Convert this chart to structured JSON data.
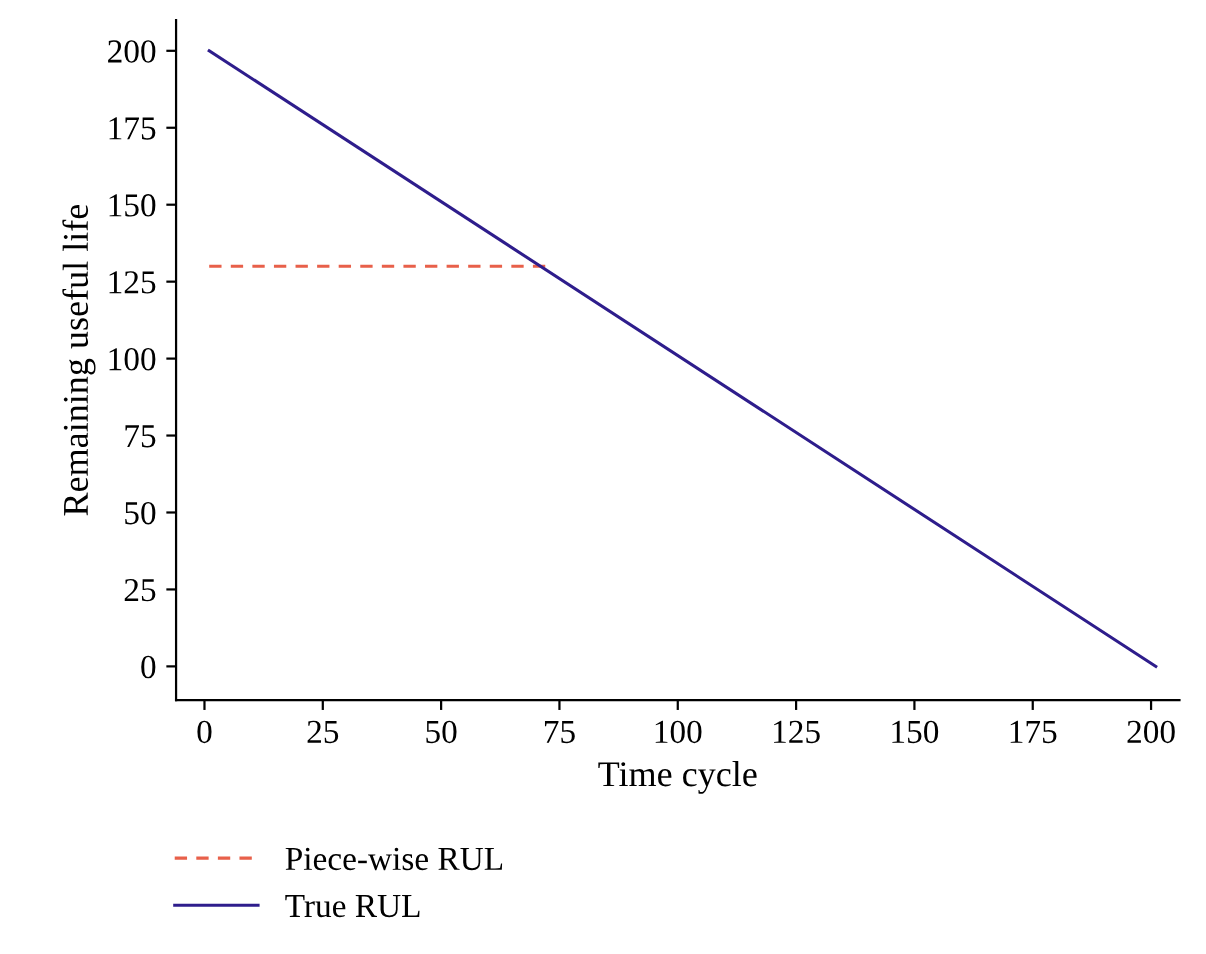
{
  "chart_data": {
    "type": "line",
    "xlabel": "Time cycle",
    "ylabel": "Remaining useful life",
    "series": [
      {
        "name": "Piece-wise RUL",
        "color": "#e8604a",
        "line_style": "dashed",
        "x": [
          1,
          72
        ],
        "values": [
          130,
          130
        ]
      },
      {
        "name": "True RUL",
        "color": "#2e1d8c",
        "line_style": "solid",
        "x": [
          1,
          201
        ],
        "values": [
          200,
          0
        ]
      }
    ],
    "xlim": [
      -6,
      206
    ],
    "xticks": [
      0,
      25,
      50,
      75,
      100,
      125,
      150,
      175,
      200
    ],
    "ylim": [
      -11,
      210
    ],
    "yticks": [
      0,
      25,
      50,
      75,
      100,
      125,
      150,
      175,
      200
    ],
    "grid": false,
    "legend": "bottom left",
    "marker": "none"
  }
}
